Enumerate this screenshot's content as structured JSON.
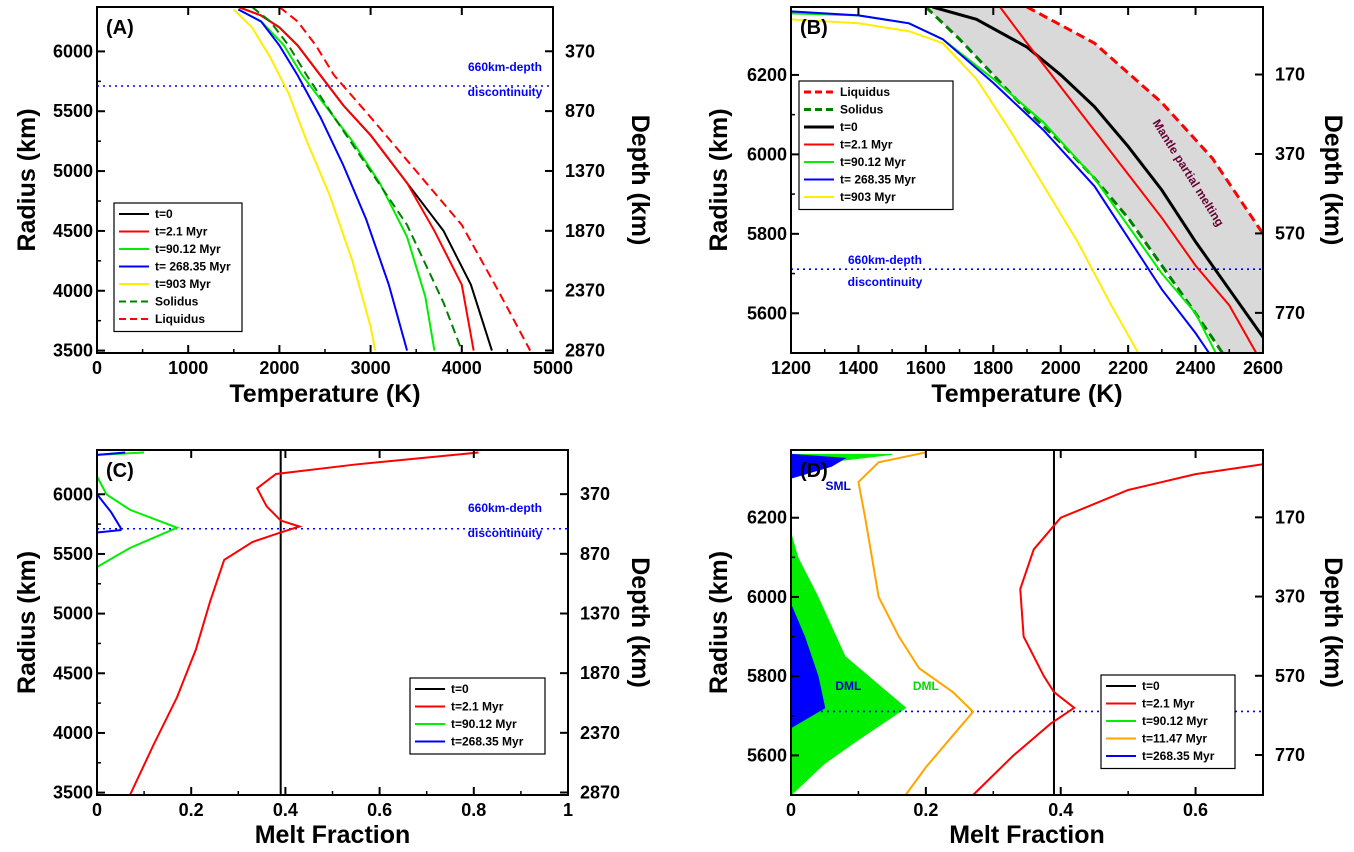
{
  "chart_data": [
    {
      "panel": "(A)",
      "type": "line",
      "xlabel": "Temperature (K)",
      "ylabel": "Radius (km)",
      "y2label": "Depth (km)",
      "xlim": [
        0,
        5000
      ],
      "ylim": [
        3480,
        6371
      ],
      "xticks": [
        0,
        1000,
        2000,
        3000,
        4000,
        5000
      ],
      "yticks": [
        3500,
        4000,
        4500,
        5000,
        5500,
        6000
      ],
      "y2ticks": [
        {
          "radius": 6001,
          "label": "370"
        },
        {
          "radius": 5501,
          "label": "870"
        },
        {
          "radius": 5001,
          "label": "1370"
        },
        {
          "radius": 4501,
          "label": "1870"
        },
        {
          "radius": 4001,
          "label": "2370"
        },
        {
          "radius": 3501,
          "label": "2870"
        }
      ],
      "reference_line": {
        "radius": 5711,
        "style": "dotted",
        "color": "#0000ff",
        "label1": "660km-depth",
        "label2": "discontinuity"
      },
      "legend_position": "lower-left",
      "series": [
        {
          "name": "t=0",
          "color": "#000000",
          "dash": "solid",
          "x": [
            1550,
            1800,
            2000,
            2200,
            2400,
            2700,
            3000,
            3400,
            3800,
            4100,
            4330
          ],
          "y": [
            6371,
            6300,
            6200,
            6050,
            5850,
            5550,
            5300,
            4900,
            4500,
            4050,
            3500
          ]
        },
        {
          "name": "t=2.1 Myr",
          "color": "#ff0000",
          "dash": "solid",
          "x": [
            1550,
            1800,
            2000,
            2200,
            2400,
            2700,
            3000,
            3400,
            3700,
            4000,
            4130
          ],
          "y": [
            6371,
            6300,
            6200,
            6050,
            5850,
            5550,
            5300,
            4900,
            4500,
            4050,
            3500
          ]
        },
        {
          "name": "t=90.12 Myr",
          "color": "#00ee00",
          "dash": "solid",
          "x": [
            1550,
            1800,
            2050,
            2250,
            2500,
            2800,
            3100,
            3400,
            3600,
            3700
          ],
          "y": [
            6350,
            6250,
            6050,
            5800,
            5550,
            5250,
            4900,
            4450,
            3950,
            3500
          ]
        },
        {
          "name": "t= 268.35 Myr",
          "color": "#0000ff",
          "dash": "solid",
          "x": [
            1550,
            1800,
            2000,
            2200,
            2450,
            2700,
            2950,
            3200,
            3400
          ],
          "y": [
            6350,
            6250,
            6050,
            5800,
            5450,
            5050,
            4600,
            4050,
            3500
          ]
        },
        {
          "name": "t=903 Myr",
          "color": "#ffee00",
          "dash": "solid",
          "x": [
            1500,
            1700,
            1900,
            2100,
            2300,
            2550,
            2800,
            3000,
            3050
          ],
          "y": [
            6350,
            6200,
            5950,
            5650,
            5250,
            4800,
            4250,
            3700,
            3500
          ]
        },
        {
          "name": "Solidus",
          "color": "#008000",
          "dash": "dashed",
          "x": [
            1700,
            1900,
            2100,
            2300,
            2600,
            3000,
            3400,
            3800,
            4000
          ],
          "y": [
            6371,
            6250,
            6050,
            5800,
            5450,
            5000,
            4550,
            3900,
            3500
          ]
        },
        {
          "name": "Liquidus",
          "color": "#ff0000",
          "dash": "dashed",
          "x": [
            2000,
            2200,
            2400,
            2600,
            3000,
            3500,
            4000,
            4400,
            4750
          ],
          "y": [
            6371,
            6250,
            6050,
            5800,
            5450,
            5000,
            4550,
            4000,
            3500
          ]
        }
      ]
    },
    {
      "panel": "(B)",
      "type": "line",
      "xlabel": "Temperature (K)",
      "ylabel": "Radius (km)",
      "y2label": "Depth (km)",
      "xlim": [
        1200,
        2600
      ],
      "ylim": [
        5500,
        6371
      ],
      "xticks": [
        1200,
        1400,
        1600,
        1800,
        2000,
        2200,
        2400,
        2600
      ],
      "yticks": [
        5600,
        5800,
        6000,
        6200
      ],
      "y2ticks": [
        {
          "radius": 6201,
          "label": "170"
        },
        {
          "radius": 6001,
          "label": "370"
        },
        {
          "radius": 5801,
          "label": "570"
        },
        {
          "radius": 5601,
          "label": "770"
        }
      ],
      "reference_line": {
        "radius": 5711,
        "style": "dotted",
        "color": "#0000ff",
        "label1": "660km-depth",
        "label2": "discontinuity"
      },
      "shaded_region_label": "Mantle partial melting",
      "legend_position": "upper-left",
      "series": [
        {
          "name": "Liquidus",
          "color": "#ff0000",
          "dash": "dashed",
          "x": [
            1900,
            2100,
            2300,
            2450,
            2600
          ],
          "y": [
            6371,
            6280,
            6130,
            5990,
            5800
          ]
        },
        {
          "name": "Solidus",
          "color": "#008000",
          "dash": "dashed",
          "x": [
            1600,
            1700,
            1800,
            1900,
            2000,
            2100,
            2200,
            2300,
            2400,
            2480
          ],
          "y": [
            6371,
            6290,
            6200,
            6110,
            6030,
            5940,
            5840,
            5720,
            5600,
            5500
          ]
        },
        {
          "name": "t=0",
          "color": "#000000",
          "dash": "solid",
          "x": [
            1620,
            1750,
            1900,
            2000,
            2100,
            2200,
            2300,
            2400,
            2500,
            2600
          ],
          "y": [
            6371,
            6340,
            6270,
            6200,
            6120,
            6020,
            5910,
            5780,
            5660,
            5540
          ]
        },
        {
          "name": "t=2.1 Myr",
          "color": "#ff0000",
          "dash": "solid",
          "x": [
            1820,
            1900,
            2000,
            2100,
            2200,
            2300,
            2400,
            2500,
            2580
          ],
          "y": [
            6371,
            6280,
            6170,
            6060,
            5950,
            5840,
            5720,
            5620,
            5500
          ]
        },
        {
          "name": "t=90.12 Myr",
          "color": "#00ee00",
          "dash": "solid",
          "x": [
            1200,
            1400,
            1550,
            1650,
            1800,
            1950,
            2100,
            2200,
            2300,
            2400,
            2460
          ],
          "y": [
            6355,
            6350,
            6330,
            6290,
            6190,
            6080,
            5940,
            5820,
            5700,
            5600,
            5500
          ]
        },
        {
          "name": "t= 268.35 Myr",
          "color": "#0000ff",
          "dash": "solid",
          "x": [
            1200,
            1400,
            1550,
            1650,
            1800,
            1950,
            2100,
            2200,
            2300,
            2400,
            2440
          ],
          "y": [
            6360,
            6350,
            6330,
            6290,
            6180,
            6060,
            5920,
            5790,
            5660,
            5550,
            5500
          ]
        },
        {
          "name": "t=903 Myr",
          "color": "#ffee00",
          "dash": "solid",
          "x": [
            1200,
            1400,
            1550,
            1650,
            1750,
            1850,
            1950,
            2050,
            2150,
            2230
          ],
          "y": [
            6340,
            6330,
            6310,
            6280,
            6190,
            6060,
            5920,
            5780,
            5620,
            5500
          ]
        }
      ]
    },
    {
      "panel": "(C)",
      "type": "line",
      "xlabel": "Melt Fraction",
      "ylabel": "Radius (km)",
      "y2label": "Depth (km)",
      "xlim": [
        0,
        1
      ],
      "ylim": [
        3480,
        6371
      ],
      "xticks": [
        0,
        0.2,
        0.4,
        0.6,
        0.8,
        1
      ],
      "xticklabels": [
        "0",
        "0.2",
        "0.4",
        "0.6",
        "0.8",
        "1"
      ],
      "yticks": [
        3500,
        4000,
        4500,
        5000,
        5500,
        6000
      ],
      "y2ticks": [
        {
          "radius": 6001,
          "label": "370"
        },
        {
          "radius": 5501,
          "label": "870"
        },
        {
          "radius": 5001,
          "label": "1370"
        },
        {
          "radius": 4501,
          "label": "1870"
        },
        {
          "radius": 4001,
          "label": "2370"
        },
        {
          "radius": 3501,
          "label": "2870"
        }
      ],
      "reference_line": {
        "radius": 5711,
        "style": "dotted",
        "color": "#0000ff",
        "label1": "660km-depth",
        "label2": "discontinuity"
      },
      "legend_position": "lower-right",
      "series": [
        {
          "name": "t=0",
          "color": "#000000",
          "dash": "solid",
          "x": [
            0.39,
            0.39
          ],
          "y": [
            3480,
            6371
          ]
        },
        {
          "name": "t=2.1 Myr",
          "color": "#ff0000",
          "dash": "solid",
          "x": [
            0.07,
            0.12,
            0.17,
            0.21,
            0.24,
            0.27,
            0.33,
            0.39,
            0.43,
            0.39,
            0.36,
            0.34,
            0.38,
            0.55,
            0.81
          ],
          "y": [
            3480,
            3900,
            4300,
            4700,
            5100,
            5450,
            5600,
            5680,
            5730,
            5780,
            5900,
            6050,
            6170,
            6250,
            6350
          ]
        },
        {
          "name": "t=90.12 Myr",
          "color": "#00ee00",
          "dash": "solid",
          "x": [
            0,
            0.07,
            0.17,
            0.07,
            0.02,
            0,
            0,
            0.1
          ],
          "y": [
            5390,
            5550,
            5720,
            5870,
            6000,
            6150,
            6330,
            6350
          ]
        },
        {
          "name": "t=268.35 Myr",
          "color": "#0000ff",
          "dash": "solid",
          "x": [
            0,
            0.05,
            0.05,
            0.03,
            0,
            0,
            0.06
          ],
          "y": [
            5680,
            5700,
            5720,
            5850,
            6000,
            6330,
            6350
          ]
        }
      ]
    },
    {
      "panel": "(D)",
      "type": "area",
      "xlabel": "Melt Fraction",
      "ylabel": "Radius (km)",
      "y2label": "Depth (km)",
      "xlim": [
        0,
        0.7
      ],
      "ylim": [
        5500,
        6371
      ],
      "xticks": [
        0,
        0.2,
        0.4,
        0.6
      ],
      "xticklabels": [
        "0",
        "0.2",
        "0.4",
        "0.6"
      ],
      "yticks": [
        5600,
        5800,
        6000,
        6200
      ],
      "y2ticks": [
        {
          "radius": 6201,
          "label": "170"
        },
        {
          "radius": 6001,
          "label": "370"
        },
        {
          "radius": 5801,
          "label": "570"
        },
        {
          "radius": 5601,
          "label": "770"
        }
      ],
      "reference_line": {
        "radius": 5711,
        "style": "dotted",
        "color": "#0000ff"
      },
      "annotations": [
        {
          "text": "SML",
          "color": "#0000cc",
          "x": 0.07,
          "y": 6270
        },
        {
          "text": "DML",
          "color": "#0000cc",
          "x": 0.085,
          "y": 5765
        },
        {
          "text": "DML",
          "color": "#00dd00",
          "x": 0.2,
          "y": 5765
        }
      ],
      "legend_position": "lower-right",
      "series": [
        {
          "name": "t=0",
          "color": "#000000",
          "dash": "solid",
          "x": [
            0.39,
            0.39
          ],
          "y": [
            5500,
            6371
          ]
        },
        {
          "name": "t=2.1 Myr",
          "color": "#ff0000",
          "dash": "solid",
          "x": [
            0.27,
            0.33,
            0.385,
            0.42,
            0.39,
            0.375,
            0.345,
            0.34,
            0.36,
            0.4,
            0.5,
            0.6,
            0.7
          ],
          "y": [
            5500,
            5600,
            5680,
            5720,
            5760,
            5800,
            5900,
            6020,
            6120,
            6200,
            6270,
            6310,
            6335
          ]
        },
        {
          "name": "t=90.12 Myr",
          "color": "#00ee00",
          "dash": "fill",
          "x": [
            0,
            0.05,
            0.1,
            0.17,
            0.08,
            0.04,
            0.01,
            0,
            0,
            0.1,
            0.15,
            0
          ],
          "y": [
            5500,
            5580,
            5640,
            5720,
            5850,
            6000,
            6100,
            6160,
            6330,
            6350,
            6360,
            6360
          ]
        },
        {
          "name": "t=11.47 Myr",
          "color": "#ffa500",
          "dash": "solid",
          "x": [
            0.17,
            0.2,
            0.24,
            0.27,
            0.24,
            0.19,
            0.16,
            0.13,
            0.12,
            0.11,
            0.1,
            0.13,
            0.2
          ],
          "y": [
            5500,
            5570,
            5650,
            5710,
            5760,
            5820,
            5900,
            6000,
            6100,
            6200,
            6290,
            6340,
            6365
          ]
        },
        {
          "name": "t=268.35 Myr",
          "color": "#0000ff",
          "dash": "fill",
          "x": [
            0,
            0.05,
            0.04,
            0.02,
            0,
            0,
            0.06,
            0.08,
            0
          ],
          "y": [
            5670,
            5720,
            5800,
            5900,
            5980,
            6300,
            6330,
            6350,
            6360
          ]
        }
      ]
    }
  ]
}
